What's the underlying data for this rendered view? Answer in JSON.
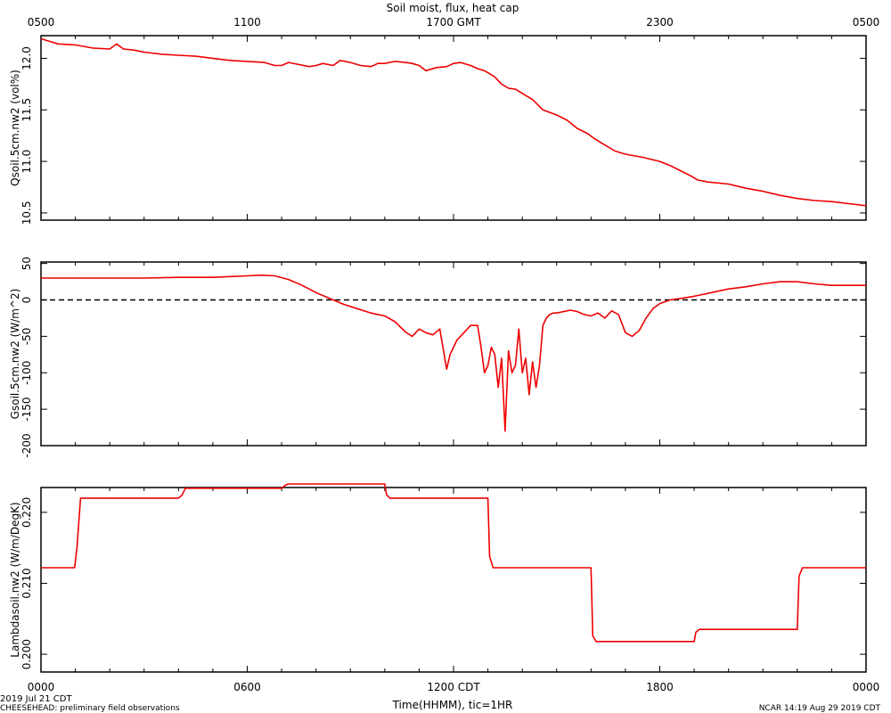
{
  "title": "Soil moist, flux, heat cap",
  "top_axis": {
    "ticks": [
      "0500",
      "1100",
      "1700 GMT",
      "2300",
      "0500"
    ]
  },
  "bottom_axis": {
    "ticks": [
      "0000",
      "0600",
      "1200 CDT",
      "1800",
      "0000"
    ],
    "label": "Time(HHMM), tic=1HR"
  },
  "footer": {
    "date": "2019 Jul 21 CDT",
    "project": "CHEESEHEAD: preliminary field observations",
    "stamp": "NCAR 14:19 Aug 29 2019 CDT"
  },
  "colors": {
    "series": "#ee0000",
    "axis": "#000000",
    "zero_line": "#000000"
  },
  "chart_data": [
    {
      "type": "line",
      "ylabel": "Qsoil.5cm.nw2 (vol%)",
      "xlim": [
        0,
        24
      ],
      "ylim": [
        10.43,
        12.22
      ],
      "y_ticks": [
        10.5,
        11.0,
        11.5,
        12.0
      ],
      "y_tick_labels": [
        "10.5",
        "11.0",
        "11.5",
        "12.0"
      ],
      "series": [
        {
          "x": [
            0,
            0.5,
            1,
            1.5,
            2,
            2.2,
            2.4,
            2.7,
            3,
            3.5,
            4,
            4.5,
            5,
            5.5,
            6,
            6.5,
            6.8,
            7,
            7.2,
            7.5,
            7.8,
            8,
            8.2,
            8.5,
            8.7,
            9,
            9.3,
            9.6,
            9.8,
            10,
            10.3,
            10.6,
            10.8,
            11,
            11.2,
            11.5,
            11.8,
            12,
            12.2,
            12.5,
            12.7,
            12.9,
            13,
            13.2,
            13.4,
            13.6,
            13.8,
            14,
            14.3,
            14.6,
            15,
            15.3,
            15.6,
            15.9,
            16.1,
            16.3,
            16.5,
            16.7,
            17,
            17.5,
            18,
            18.3,
            18.6,
            18.9,
            19.1,
            19.4,
            20,
            20.5,
            21,
            21.5,
            22,
            22.5,
            23,
            23.5,
            24
          ],
          "y": [
            12.19,
            12.14,
            12.13,
            12.1,
            12.09,
            12.14,
            12.09,
            12.08,
            12.06,
            12.04,
            12.03,
            12.02,
            12.0,
            11.98,
            11.97,
            11.96,
            11.93,
            11.93,
            11.96,
            11.94,
            11.92,
            11.93,
            11.95,
            11.93,
            11.98,
            11.96,
            11.93,
            11.92,
            11.95,
            11.95,
            11.97,
            11.96,
            11.95,
            11.93,
            11.88,
            11.91,
            11.92,
            11.95,
            11.96,
            11.93,
            11.9,
            11.88,
            11.86,
            11.82,
            11.75,
            11.71,
            11.7,
            11.66,
            11.6,
            11.5,
            11.45,
            11.4,
            11.32,
            11.27,
            11.22,
            11.18,
            11.14,
            11.1,
            11.07,
            11.04,
            11.0,
            10.96,
            10.91,
            10.86,
            10.82,
            10.8,
            10.78,
            10.74,
            10.71,
            10.67,
            10.64,
            10.62,
            10.61,
            10.59,
            10.57
          ]
        }
      ]
    },
    {
      "type": "line",
      "ylabel": "Gsoil.5cm.nw2 (W/m^2)",
      "xlim": [
        0,
        24
      ],
      "ylim": [
        -200,
        52
      ],
      "y_ticks": [
        -200,
        -150,
        -100,
        -50,
        0,
        50
      ],
      "y_tick_labels": [
        "-200",
        "-150",
        "-100",
        "-50",
        "0",
        "50"
      ],
      "zero_line": true,
      "series": [
        {
          "x": [
            0,
            1,
            2,
            3,
            4,
            5,
            5.5,
            6,
            6.4,
            6.8,
            7.2,
            7.6,
            8,
            8.4,
            8.8,
            9.2,
            9.6,
            10,
            10.3,
            10.6,
            10.8,
            11,
            11.2,
            11.4,
            11.6,
            11.8,
            11.9,
            12,
            12.1,
            12.3,
            12.5,
            12.7,
            12.8,
            12.9,
            13,
            13.1,
            13.2,
            13.3,
            13.4,
            13.5,
            13.6,
            13.7,
            13.8,
            13.9,
            14,
            14.1,
            14.2,
            14.3,
            14.4,
            14.5,
            14.6,
            14.7,
            14.8,
            14.9,
            15,
            15.2,
            15.4,
            15.6,
            15.8,
            16,
            16.2,
            16.4,
            16.6,
            16.8,
            17,
            17.2,
            17.4,
            17.6,
            17.8,
            18,
            18.3,
            18.6,
            19,
            19.5,
            20,
            20.5,
            21,
            21.5,
            22,
            22.5,
            23,
            24
          ],
          "y": [
            30,
            30,
            30,
            30,
            31,
            31,
            32,
            33,
            34,
            33,
            28,
            20,
            10,
            2,
            -6,
            -12,
            -18,
            -22,
            -30,
            -44,
            -50,
            -40,
            -45,
            -48,
            -40,
            -95,
            -75,
            -65,
            -55,
            -45,
            -35,
            -35,
            -65,
            -100,
            -90,
            -65,
            -75,
            -120,
            -80,
            -180,
            -70,
            -100,
            -90,
            -40,
            -100,
            -80,
            -130,
            -85,
            -120,
            -90,
            -35,
            -25,
            -20,
            -18,
            -18,
            -16,
            -14,
            -16,
            -20,
            -22,
            -18,
            -25,
            -15,
            -20,
            -45,
            -50,
            -42,
            -25,
            -12,
            -5,
            0,
            2,
            5,
            10,
            15,
            18,
            22,
            25,
            25,
            22,
            20,
            20
          ]
        }
      ]
    },
    {
      "type": "line",
      "ylabel": "Lambdasoil.nw2 (W/m/DegK)",
      "xlim": [
        0,
        24
      ],
      "ylim": [
        0.1975,
        0.2235
      ],
      "y_ticks": [
        0.2,
        0.21,
        0.22
      ],
      "y_tick_labels": [
        "0.200",
        "0.210",
        "0.220"
      ],
      "series": [
        {
          "x": [
            0,
            0.98,
            1.05,
            1.15,
            4,
            4.1,
            4.2,
            7,
            7.1,
            7.2,
            10,
            10.05,
            10.15,
            13,
            13.05,
            13.15,
            16,
            16.05,
            16.15,
            19,
            19.05,
            19.15,
            22,
            22.05,
            22.15,
            24
          ],
          "y": [
            0.2122,
            0.2122,
            0.2152,
            0.222,
            0.222,
            0.2224,
            0.2234,
            0.2234,
            0.2238,
            0.224,
            0.224,
            0.2225,
            0.222,
            0.222,
            0.2138,
            0.2122,
            0.2122,
            0.2026,
            0.2018,
            0.2018,
            0.2031,
            0.2035,
            0.2035,
            0.211,
            0.2122,
            0.2122
          ]
        }
      ]
    }
  ]
}
